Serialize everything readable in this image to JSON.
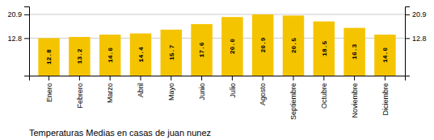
{
  "chart_data": {
    "type": "bar",
    "title": "Temperaturas Medias en casas de juan nunez",
    "categories": [
      "Enero",
      "Febrero",
      "Marzo",
      "Abril",
      "Mayo",
      "Junio",
      "Julio",
      "Agosto",
      "Septiembre",
      "Octubre",
      "Noviembre",
      "Diciembre"
    ],
    "values": [
      12.8,
      13.2,
      14.0,
      14.4,
      15.7,
      17.6,
      20.0,
      20.9,
      20.5,
      18.5,
      16.3,
      14.0
    ],
    "value_labels": [
      "12.8",
      "13.2",
      "14.0",
      "14.4",
      "15.7",
      "17.6",
      "20.0",
      "20.9",
      "20.5",
      "18.5",
      "16.3",
      "14.0"
    ],
    "color": "#F5C400",
    "ylim": [
      0,
      23.617
    ],
    "yticks": [
      12.8,
      20.9
    ],
    "grid": true,
    "data_labels": true
  }
}
